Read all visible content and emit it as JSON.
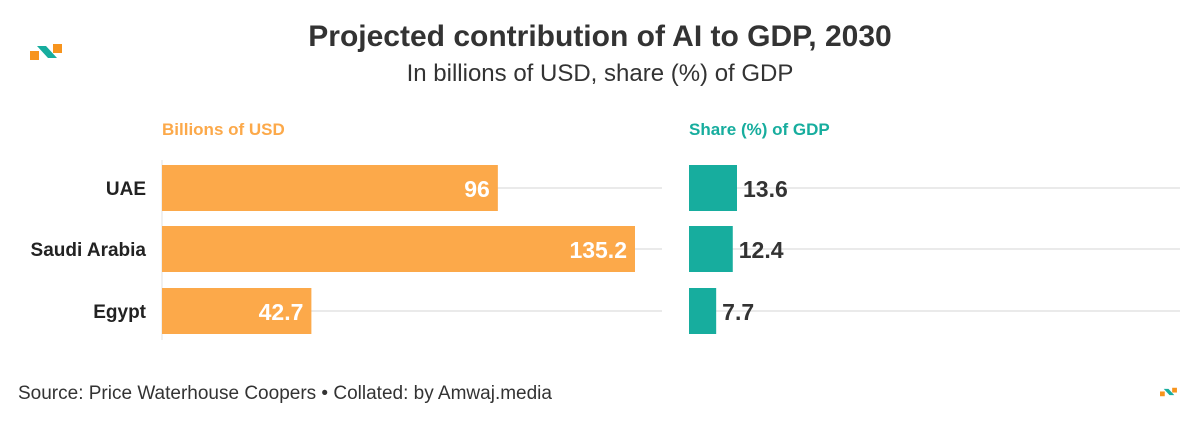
{
  "header": {
    "title": "Projected contribution of AI to GDP, 2030",
    "subtitle": "In billions of USD, share (%) of GDP"
  },
  "footer": {
    "source": "Source: Price Waterhouse Coopers • Collated: by Amwaj.media"
  },
  "colors": {
    "usd": "#fca94a",
    "gdp": "#17ad9e",
    "grid": "#e4e4e4",
    "logo_orange": "#f7941d",
    "logo_teal": "#17ad9e"
  },
  "chart_data": {
    "type": "bar",
    "orientation": "horizontal",
    "categories": [
      "UAE",
      "Saudi Arabia",
      "Egypt"
    ],
    "series": [
      {
        "name": "Billions of USD",
        "values": [
          96,
          135.2,
          42.7
        ],
        "labels": [
          "96",
          "135.2",
          "42.7"
        ]
      },
      {
        "name": "Share (%) of GDP",
        "values": [
          13.6,
          12.4,
          7.7
        ],
        "labels": [
          "13.6",
          "12.4",
          "7.7"
        ]
      }
    ],
    "title": "Projected contribution of AI to GDP, 2030",
    "subtitle": "In billions of USD, share (%) of GDP",
    "xlim_usd": [
      0,
      151
    ],
    "xlim_gdp": [
      0,
      80
    ],
    "grid": true,
    "legend": "column headers"
  }
}
